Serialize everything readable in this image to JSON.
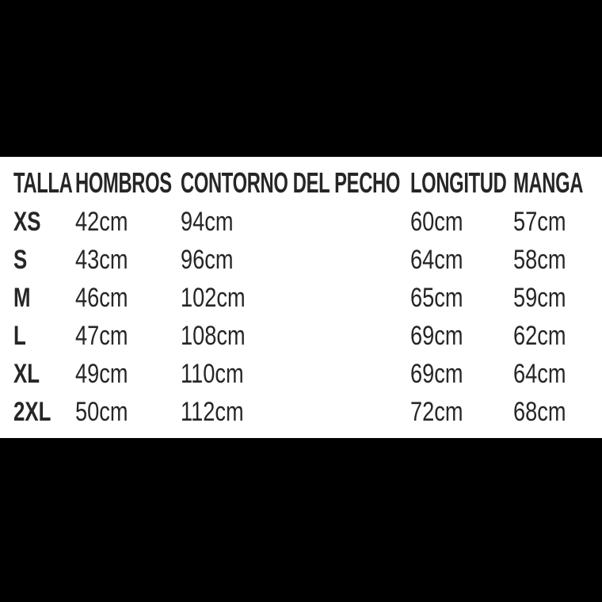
{
  "palette": {
    "page_background": "#000000",
    "panel_background": "#ffffff",
    "text_color": "#262626"
  },
  "chart_data": {
    "type": "table",
    "columns": [
      "TALLA",
      "HOMBROS",
      "CONTORNO DEL PECHO",
      "LONGITUD",
      "MANGA"
    ],
    "rows": [
      [
        "XS",
        "42cm",
        "94cm",
        "60cm",
        "57cm"
      ],
      [
        "S",
        "43cm",
        "96cm",
        "64cm",
        "58cm"
      ],
      [
        "M",
        "46cm",
        "102cm",
        "65cm",
        "59cm"
      ],
      [
        "L",
        "47cm",
        "108cm",
        "69cm",
        "62cm"
      ],
      [
        "XL",
        "49cm",
        "110cm",
        "69cm",
        "64cm"
      ],
      [
        "2XL",
        "50cm",
        "112cm",
        "72cm",
        "68cm"
      ]
    ],
    "unit": "cm",
    "layout": {
      "grid": false,
      "title": "",
      "notes": "white table band letterboxed by black bars top and bottom"
    }
  }
}
